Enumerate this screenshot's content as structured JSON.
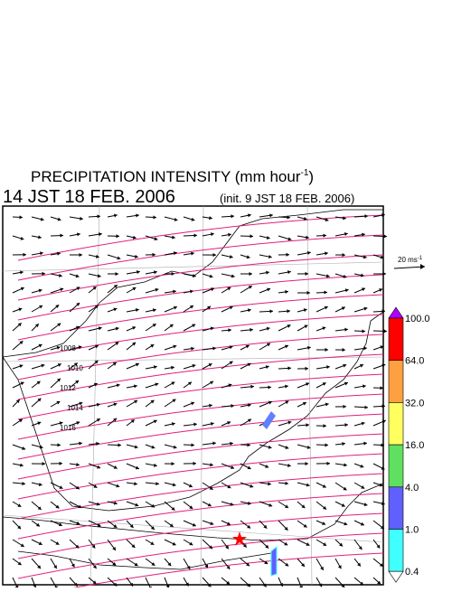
{
  "header": {
    "title": {
      "main": "PRECIPITATION INTENSITY (mm hour",
      "exponent": "-1",
      "close": ")"
    },
    "time": "14 JST 18 FEB. 2006",
    "init": "(init. 9 JST 18 FEB. 2006)"
  },
  "scale": {
    "label": "20 ms",
    "exponent": "-1"
  },
  "colorbar": {
    "labels": [
      "100.0",
      "64.0",
      "32.0",
      "16.0",
      "4.0",
      "1.0",
      "0.4"
    ],
    "colors": [
      "#ff0000",
      "#ffa040",
      "#ffff60",
      "#60e060",
      "#6060ff",
      "#40ffff"
    ],
    "over": "#b000ff",
    "under": "#ffffff"
  },
  "isobars": {
    "labels": [
      "1008",
      "1010",
      "1012",
      "1014",
      "1016"
    ]
  }
}
